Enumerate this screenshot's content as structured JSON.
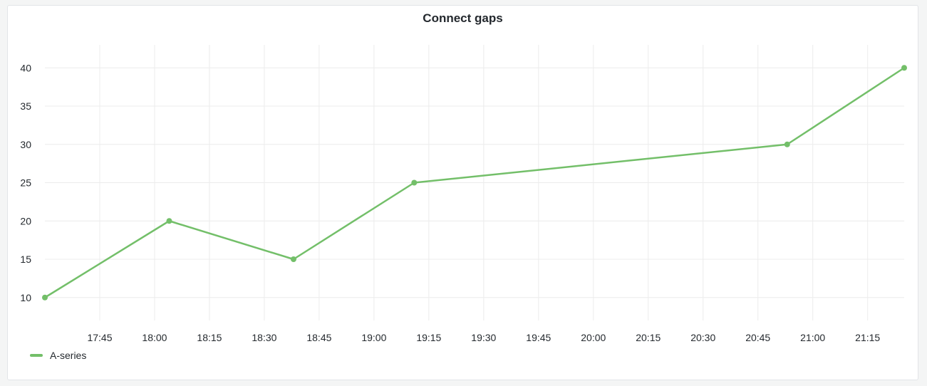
{
  "panel": {
    "title": "Connect gaps"
  },
  "chart_data": {
    "type": "line",
    "title": "Connect gaps",
    "xlabel": "",
    "ylabel": "",
    "x_ticks": [
      "17:45",
      "18:00",
      "18:15",
      "18:30",
      "18:45",
      "19:00",
      "19:15",
      "19:30",
      "19:45",
      "20:00",
      "20:15",
      "20:30",
      "20:45",
      "21:00",
      "21:15"
    ],
    "y_ticks": [
      10,
      15,
      20,
      25,
      30,
      35,
      40
    ],
    "xlim": [
      "17:30",
      "21:25"
    ],
    "ylim": [
      7,
      43
    ],
    "grid": true,
    "legend_placement": "bottom-left",
    "series": [
      {
        "name": "A-series",
        "color": "#73bf69",
        "points": [
          {
            "x": "17:30",
            "y": 10
          },
          {
            "x": "18:04",
            "y": 20
          },
          {
            "x": "18:38",
            "y": 15
          },
          {
            "x": "19:11",
            "y": 25
          },
          {
            "x": "20:53",
            "y": 30
          },
          {
            "x": "21:25",
            "y": 40
          }
        ]
      }
    ]
  }
}
